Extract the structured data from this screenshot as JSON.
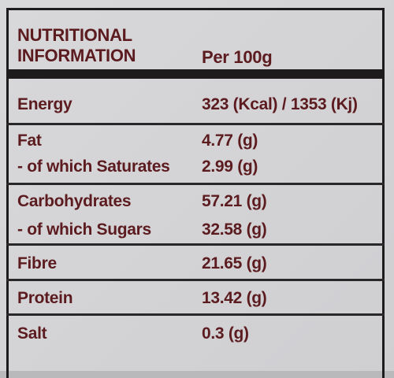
{
  "header": {
    "title": "NUTRITIONAL INFORMATION",
    "column": "Per 100g"
  },
  "table": {
    "groups": [
      [
        [
          "Energy",
          "323 (Kcal) / 1353 (Kj)"
        ]
      ],
      [
        [
          "Fat",
          "4.77 (g)"
        ],
        [
          "- of which Saturates",
          "2.99 (g)"
        ]
      ],
      [
        [
          "Carbohydrates",
          "57.21 (g)"
        ],
        [
          "- of which Sugars",
          "32.58 (g)"
        ]
      ],
      [
        [
          "Fibre",
          "21.65 (g)"
        ]
      ],
      [
        [
          "Protein",
          "13.42 (g)"
        ]
      ],
      [
        [
          "Salt",
          "0.3 (g)"
        ]
      ]
    ]
  }
}
